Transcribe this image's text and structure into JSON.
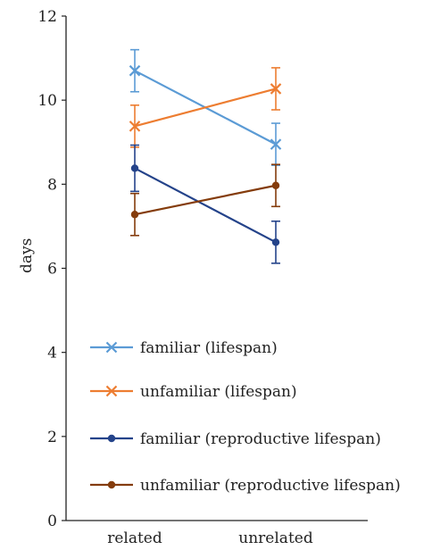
{
  "chart_data": {
    "type": "line",
    "title": "",
    "xlabel": "",
    "ylabel": "days",
    "categories": [
      "related",
      "unrelated"
    ],
    "ylim": [
      0,
      12
    ],
    "yticks": [
      0,
      2,
      4,
      6,
      8,
      10,
      12
    ],
    "grid": false,
    "legend_position": "bottom-right inside plot",
    "series": [
      {
        "name": "familiar (lifespan)",
        "marker": "x",
        "color": "#5b9bd5",
        "values": [
          10.7,
          8.95
        ],
        "err": [
          0.5,
          0.5
        ]
      },
      {
        "name": "unfamiliar (lifespan)",
        "marker": "x",
        "color": "#ed7d31",
        "values": [
          9.38,
          10.27
        ],
        "err": [
          0.5,
          0.5
        ]
      },
      {
        "name": "familiar (reproductive lifespan)",
        "marker": "circle",
        "color": "#24438a",
        "values": [
          8.38,
          6.62
        ],
        "err": [
          0.55,
          0.5
        ]
      },
      {
        "name": "unfamiliar (reproductive lifespan)",
        "marker": "circle",
        "color": "#843c0c",
        "values": [
          7.28,
          7.97
        ],
        "err": [
          0.5,
          0.5
        ]
      }
    ]
  }
}
